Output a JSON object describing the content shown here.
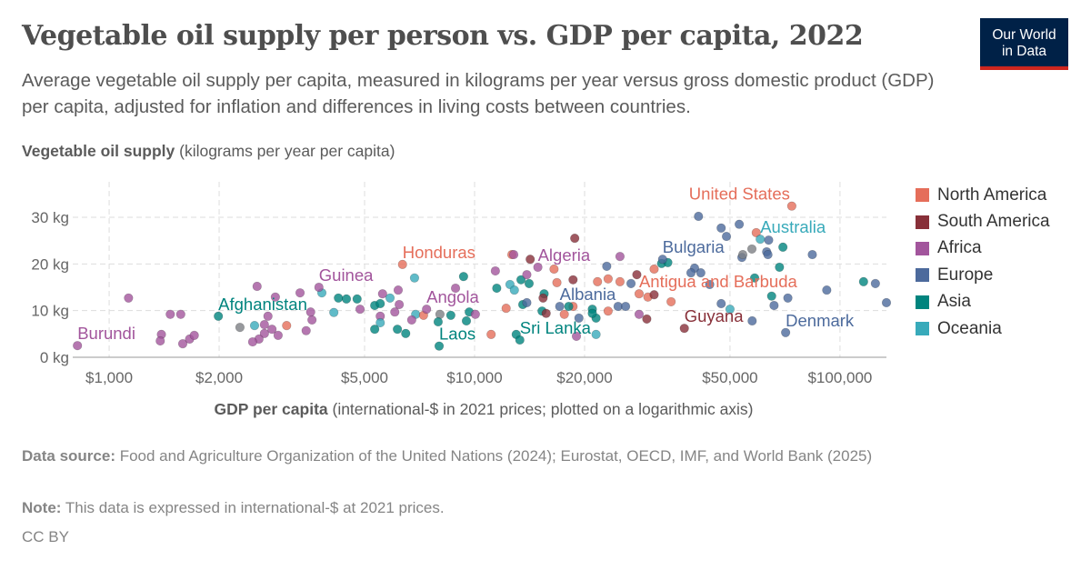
{
  "header": {
    "title": "Vegetable oil supply per person vs. GDP per capita, 2022",
    "subtitle": "Average vegetable oil supply per capita, measured in kilograms per year versus gross domestic product (GDP) per capita, adjusted for inflation and differences in living costs between countries.",
    "logo_line1": "Our World",
    "logo_line2": "in Data"
  },
  "footer": {
    "source_label": "Data source:",
    "source_text": " Food and Agriculture Organization of the United Nations (2024); Eurostat, OECD, IMF, and World Bank (2025)",
    "note_label": "Note:",
    "note_text": " This data is expressed in international-$ at 2021 prices.",
    "license": "CC BY"
  },
  "chart_data": {
    "type": "scatter",
    "title": "Vegetable oil supply per person vs. GDP per capita, 2022",
    "ylabel_bold": "Vegetable oil supply",
    "ylabel_rest": " (kilograms per year per capita)",
    "xlabel_bold": "GDP per capita",
    "xlabel_rest": " (international-$ in 2021 prices; plotted on a logarithmic axis)",
    "x_scale": "log",
    "xlim": [
      795,
      134000
    ],
    "ylim": [
      0,
      37.6
    ],
    "grid": true,
    "legend_placement": "right",
    "x_ticks": [
      {
        "v": 1000,
        "label": "$1,000"
      },
      {
        "v": 2000,
        "label": "$2,000"
      },
      {
        "v": 5000,
        "label": "$5,000"
      },
      {
        "v": 10000,
        "label": "$10,000"
      },
      {
        "v": 20000,
        "label": "$20,000"
      },
      {
        "v": 50000,
        "label": "$50,000"
      },
      {
        "v": 100000,
        "label": "$100,000"
      }
    ],
    "y_ticks": [
      {
        "v": 0,
        "label": "0 kg"
      },
      {
        "v": 10,
        "label": "10 kg"
      },
      {
        "v": 20,
        "label": "20 kg"
      },
      {
        "v": 30,
        "label": "30 kg"
      }
    ],
    "regions": [
      {
        "name": "North America",
        "color": "#e56e5a"
      },
      {
        "name": "South America",
        "color": "#883039"
      },
      {
        "name": "Africa",
        "color": "#a2559c"
      },
      {
        "name": "Europe",
        "color": "#4c6a9c"
      },
      {
        "name": "Asia",
        "color": "#00847e"
      },
      {
        "name": "Oceania",
        "color": "#38aaba"
      }
    ],
    "other_color": "#7d8085",
    "points": [
      [
        819,
        2.5,
        "Africa",
        "Burundi"
      ],
      [
        1130,
        12.7,
        "Africa"
      ],
      [
        1470,
        9.2,
        "Africa"
      ],
      [
        1570,
        9.2,
        "Africa"
      ],
      [
        1390,
        4.9,
        "Africa"
      ],
      [
        1380,
        3.5,
        "Africa"
      ],
      [
        1590,
        2.9,
        "Africa"
      ],
      [
        1660,
        3.9,
        "Africa"
      ],
      [
        1710,
        4.7,
        "Africa"
      ],
      [
        1990,
        8.8,
        "Asia",
        "Afghanistan"
      ],
      [
        2280,
        6.4,
        ""
      ],
      [
        2500,
        6.8,
        "Oceania"
      ],
      [
        2540,
        15.2,
        "Africa"
      ],
      [
        2660,
        7,
        "Africa"
      ],
      [
        2720,
        8.8,
        "Africa"
      ],
      [
        2660,
        5.1,
        "Africa"
      ],
      [
        2570,
        3.9,
        "Africa"
      ],
      [
        2470,
        3.3,
        "Africa"
      ],
      [
        2790,
        6,
        "Africa"
      ],
      [
        2900,
        4.7,
        "Africa"
      ],
      [
        3060,
        6.8,
        "North America"
      ],
      [
        2850,
        12.9,
        "Africa"
      ],
      [
        3330,
        13.8,
        "Africa"
      ],
      [
        3590,
        8,
        "Africa"
      ],
      [
        3460,
        5.7,
        "Africa"
      ],
      [
        3560,
        9.7,
        "Africa"
      ],
      [
        3820,
        13.8,
        "Oceania"
      ],
      [
        3750,
        15,
        "Africa",
        "Guinea"
      ],
      [
        4120,
        9.6,
        "Oceania"
      ],
      [
        4240,
        12.7,
        "Asia"
      ],
      [
        4460,
        12.5,
        "Asia"
      ],
      [
        4770,
        12.5,
        "Asia"
      ],
      [
        4860,
        10.3,
        "Africa"
      ],
      [
        5330,
        11.1,
        "Asia"
      ],
      [
        5520,
        11.5,
        "Asia"
      ],
      [
        5600,
        13.6,
        "Africa"
      ],
      [
        5870,
        12.7,
        "Oceania"
      ],
      [
        6180,
        14.4,
        "Africa"
      ],
      [
        6220,
        11.3,
        "Africa"
      ],
      [
        6050,
        9.7,
        "Africa"
      ],
      [
        5520,
        8.8,
        "Africa"
      ],
      [
        5520,
        7.4,
        "Oceania"
      ],
      [
        5330,
        6,
        "Asia"
      ],
      [
        6150,
        6,
        "Asia"
      ],
      [
        6480,
        5.1,
        "Asia"
      ],
      [
        6350,
        19.9,
        "North America",
        "Honduras"
      ],
      [
        6850,
        17,
        "Oceania"
      ],
      [
        6900,
        9.2,
        "Oceania"
      ],
      [
        7250,
        9,
        "North America"
      ],
      [
        6730,
        8,
        "Africa"
      ],
      [
        7390,
        10.3,
        "Africa",
        "Angola"
      ],
      [
        8040,
        9.2,
        ""
      ],
      [
        7950,
        7.6,
        "Asia"
      ],
      [
        8610,
        9,
        "Asia"
      ],
      [
        9330,
        17.3,
        "Asia"
      ],
      [
        8870,
        14.8,
        "Africa"
      ],
      [
        9500,
        7.8,
        "Asia"
      ],
      [
        9670,
        9.7,
        "Asia"
      ],
      [
        10050,
        9.2,
        "Africa"
      ],
      [
        8000,
        2.4,
        "Asia",
        "Laos"
      ],
      [
        11400,
        18.5,
        "Africa"
      ],
      [
        12650,
        22,
        "North America"
      ],
      [
        12800,
        22,
        "Africa"
      ],
      [
        11500,
        14.8,
        "Asia"
      ],
      [
        12500,
        15.6,
        "Oceania"
      ],
      [
        12850,
        14.4,
        "Oceania"
      ],
      [
        13400,
        16.6,
        "Asia"
      ],
      [
        14100,
        15.8,
        "Asia"
      ],
      [
        13900,
        17.7,
        "Africa"
      ],
      [
        14200,
        21,
        "South America"
      ],
      [
        14900,
        19.3,
        "Africa",
        "Algeria"
      ],
      [
        16500,
        18.9,
        "North America"
      ],
      [
        12200,
        10.5,
        "North America"
      ],
      [
        13550,
        11.3,
        "Asia"
      ],
      [
        13900,
        11.7,
        "Europe"
      ],
      [
        15500,
        13.6,
        "Asia"
      ],
      [
        15400,
        12.7,
        "South America"
      ],
      [
        15300,
        9.9,
        "Asia"
      ],
      [
        15700,
        9.4,
        "South America"
      ],
      [
        16800,
        16,
        "North America"
      ],
      [
        18600,
        16.6,
        "South America"
      ],
      [
        17600,
        9.2,
        "North America"
      ],
      [
        18600,
        10.9,
        "North America"
      ],
      [
        21000,
        10.3,
        "Asia"
      ],
      [
        21500,
        8.4,
        "Asia"
      ],
      [
        19000,
        4.5,
        "Africa"
      ],
      [
        21500,
        4.9,
        "Oceania"
      ],
      [
        18800,
        25.5,
        "South America"
      ],
      [
        25000,
        21.6,
        "Africa"
      ],
      [
        23000,
        19.5,
        "Europe"
      ],
      [
        21700,
        16.2,
        "North America"
      ],
      [
        23200,
        16.8,
        "North America"
      ],
      [
        25000,
        16.2,
        "North America"
      ],
      [
        23200,
        9.9,
        "North America"
      ],
      [
        24700,
        10.9,
        "Europe"
      ],
      [
        25900,
        10.9,
        "Europe"
      ],
      [
        26800,
        15.8,
        "Europe"
      ],
      [
        27800,
        17.7,
        "South America"
      ],
      [
        28200,
        13.6,
        "North America",
        "Antigua and Barbuda"
      ],
      [
        29800,
        12.9,
        "North America"
      ],
      [
        31000,
        13.4,
        "South America"
      ],
      [
        31000,
        18.9,
        "North America"
      ],
      [
        28200,
        9.2,
        "Africa"
      ],
      [
        29600,
        8.2,
        "South America"
      ],
      [
        32500,
        20.1,
        "Asia"
      ],
      [
        33800,
        20.3,
        "Asia"
      ],
      [
        32700,
        21,
        "Europe",
        "Bulgaria"
      ],
      [
        40000,
        19.1,
        "Europe"
      ],
      [
        39100,
        18.1,
        "Europe"
      ],
      [
        41600,
        18.1,
        "Europe"
      ],
      [
        41000,
        30.2,
        "Europe"
      ],
      [
        47300,
        27.7,
        "Europe"
      ],
      [
        53000,
        28.5,
        "Europe"
      ],
      [
        48900,
        25.9,
        "Europe"
      ],
      [
        59000,
        26.7,
        "North America"
      ],
      [
        63800,
        25.1,
        "Europe"
      ],
      [
        57400,
        23.2,
        ""
      ],
      [
        53900,
        21.4,
        "Europe"
      ],
      [
        54200,
        22,
        ""
      ],
      [
        63000,
        22.6,
        "Europe"
      ],
      [
        63500,
        22,
        "Europe"
      ],
      [
        69800,
        23.6,
        "Asia"
      ],
      [
        84000,
        22,
        "Europe"
      ],
      [
        68300,
        19.3,
        "Asia"
      ],
      [
        116000,
        16.2,
        "Asia"
      ],
      [
        125000,
        15.8,
        "Europe"
      ],
      [
        92000,
        14.4,
        "Europe"
      ],
      [
        65000,
        13.1,
        "Asia"
      ],
      [
        72000,
        12.7,
        "Europe"
      ],
      [
        66000,
        11.1,
        "Europe"
      ],
      [
        134000,
        11.7,
        "Europe"
      ],
      [
        47300,
        11.5,
        "Europe"
      ],
      [
        50000,
        10.3,
        "Oceania"
      ],
      [
        57500,
        7.8,
        "Europe"
      ],
      [
        37500,
        6.2,
        "South America",
        "Guyana"
      ],
      [
        71000,
        5.3,
        "Europe",
        "Denmark"
      ],
      [
        73800,
        32.4,
        "North America",
        "United States"
      ],
      [
        60500,
        25.3,
        "Oceania",
        "Australia"
      ],
      [
        44000,
        15.6,
        "Europe"
      ],
      [
        58400,
        17,
        "Asia"
      ],
      [
        34500,
        11.9,
        "North America"
      ],
      [
        11100,
        4.9,
        "North America"
      ],
      [
        13000,
        4.9,
        "Asia"
      ],
      [
        13300,
        3.7,
        "Asia",
        "Sri Lanka"
      ],
      [
        19300,
        8.4,
        "Europe"
      ],
      [
        21000,
        9.4,
        "Asia"
      ],
      [
        17100,
        10.9,
        "Europe",
        "Albania"
      ],
      [
        18100,
        10.9,
        "Asia"
      ]
    ]
  }
}
